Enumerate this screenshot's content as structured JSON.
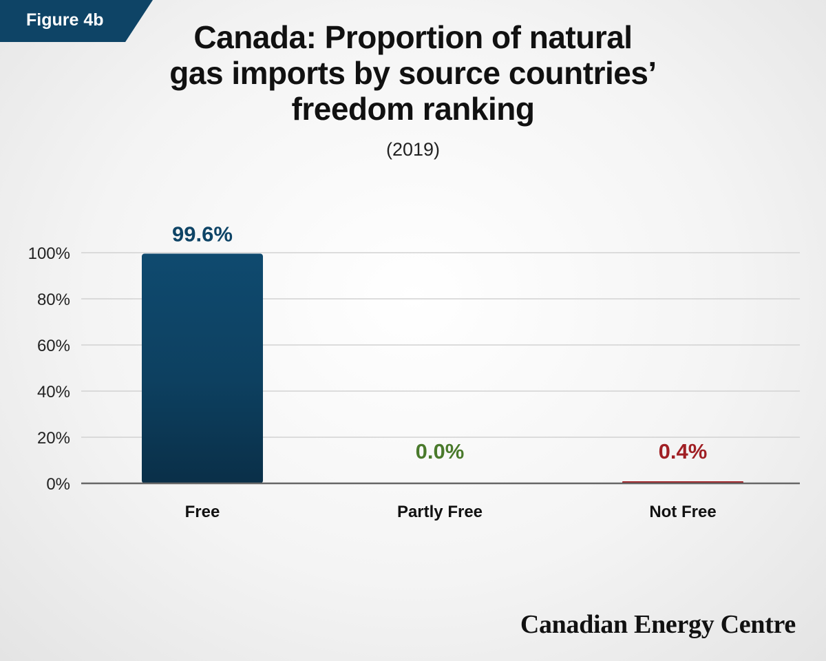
{
  "badge": {
    "label": "Figure 4b"
  },
  "header": {
    "title_lines": [
      "Canada: Proportion of natural",
      "gas imports by source countries’",
      "freedom ranking"
    ],
    "subtitle": "(2019)"
  },
  "colors": {
    "badge": "#0e4466",
    "free": "#0e4466",
    "partly_free": "#4a7a2c",
    "not_free": "#a01f24",
    "grid": "#d2d2d2",
    "axis": "#666666"
  },
  "chart_data": {
    "type": "bar",
    "categories": [
      "Free",
      "Partly Free",
      "Not Free"
    ],
    "values": [
      99.6,
      0.0,
      0.4
    ],
    "value_labels": [
      "99.6%",
      "0.0%",
      "0.4%"
    ],
    "yticks": [
      "0%",
      "20%",
      "40%",
      "60%",
      "80%",
      "100%"
    ],
    "ylim": [
      0,
      100
    ],
    "grid": true,
    "legend": false
  },
  "footer": {
    "brand": "Canadian Energy Centre"
  }
}
